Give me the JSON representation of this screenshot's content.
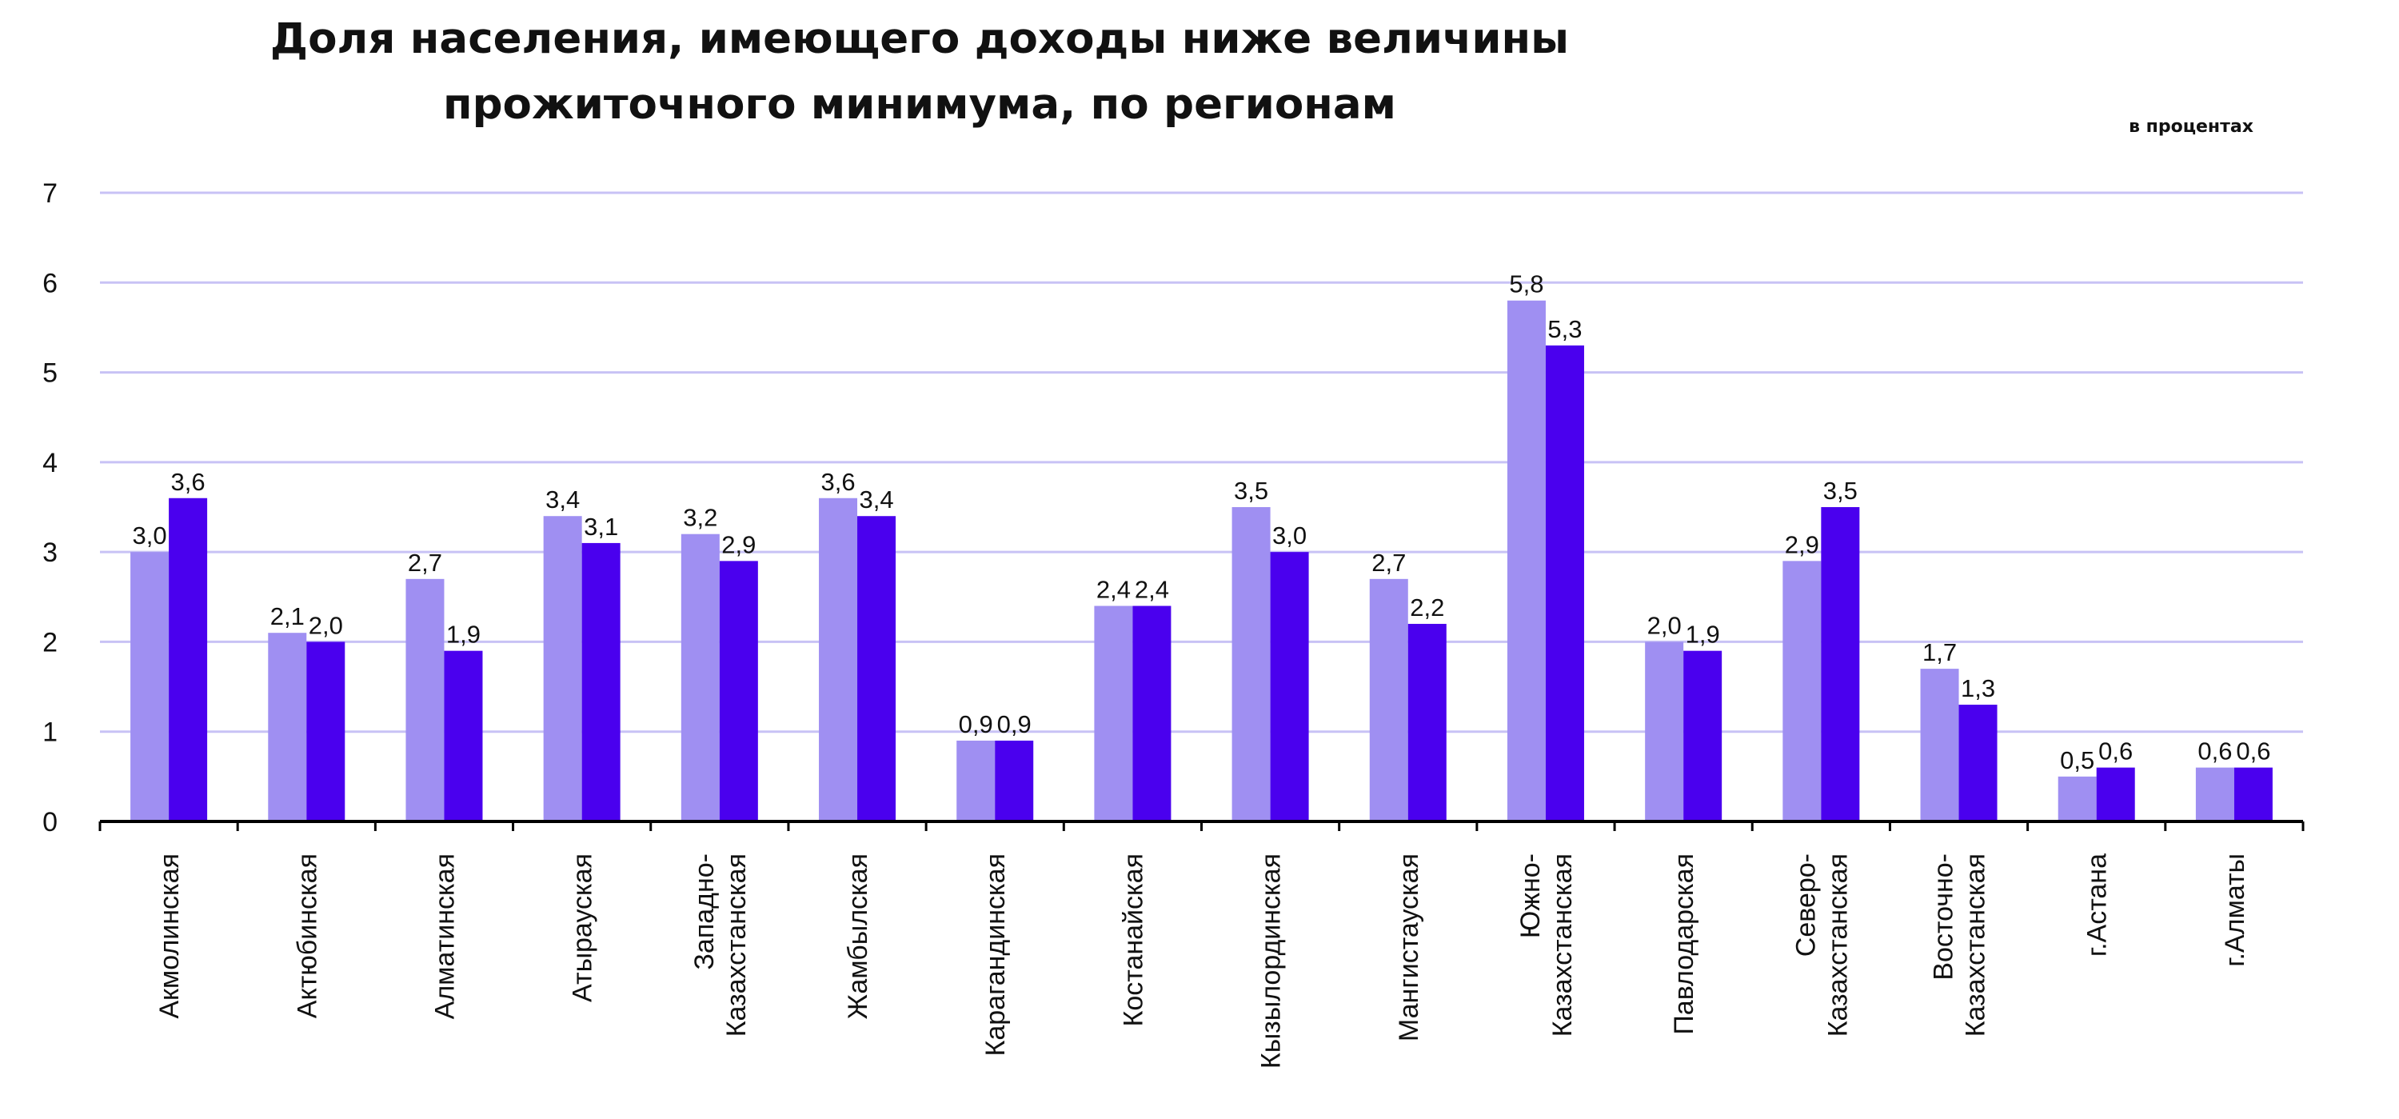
{
  "chart_data": {
    "type": "bar",
    "title_line1": "Доля населения, имеющего доходы ниже величины",
    "title_line2": "прожиточного минимума, по регионам",
    "unit_label": "в процентах",
    "ylim": [
      0,
      7
    ],
    "yticks": [
      0,
      1,
      2,
      3,
      4,
      5,
      6,
      7
    ],
    "grid": true,
    "legend": "none",
    "colors": {
      "series1": "#9f8ff2",
      "series2": "#4a00ee",
      "grid": "#c8c2f5",
      "axis": "#000000"
    },
    "categories": [
      [
        "Акмолинская"
      ],
      [
        "Актюбинская"
      ],
      [
        "Алматинская"
      ],
      [
        "Атырауская"
      ],
      [
        "Западно-",
        "Казахстанская"
      ],
      [
        "Жамбылская"
      ],
      [
        "Карагандинская"
      ],
      [
        "Костанайская"
      ],
      [
        "Кызылординская"
      ],
      [
        "Мангистауская"
      ],
      [
        "Южно-",
        "Казахстанская"
      ],
      [
        "Павлодарская"
      ],
      [
        "Северо-",
        "Казахстанская"
      ],
      [
        "Восточно-",
        "Казахстанская"
      ],
      [
        "г.Астана"
      ],
      [
        "г.Алматы"
      ]
    ],
    "series": [
      {
        "values": [
          3.0,
          2.1,
          2.7,
          3.4,
          3.2,
          3.6,
          0.9,
          2.4,
          3.5,
          2.7,
          5.8,
          2.0,
          2.9,
          1.7,
          0.5,
          0.6
        ],
        "labels": [
          "3,0",
          "2,1",
          "2,7",
          "3,4",
          "3,2",
          "3,6",
          "0,9",
          "2,4",
          "3,5",
          "2,7",
          "5,8",
          "2,0",
          "2,9",
          "1,7",
          "0,5",
          "0,6"
        ]
      },
      {
        "values": [
          3.6,
          2.0,
          1.9,
          3.1,
          2.9,
          3.4,
          0.9,
          2.4,
          3.0,
          2.2,
          5.3,
          1.9,
          3.5,
          1.3,
          0.6,
          0.6
        ],
        "labels": [
          "3,6",
          "2,0",
          "1,9",
          "3,1",
          "2,9",
          "3,4",
          "0,9",
          "2,4",
          "3,0",
          "2,2",
          "5,3",
          "1,9",
          "3,5",
          "1,3",
          "0,6",
          "0,6"
        ]
      }
    ]
  }
}
